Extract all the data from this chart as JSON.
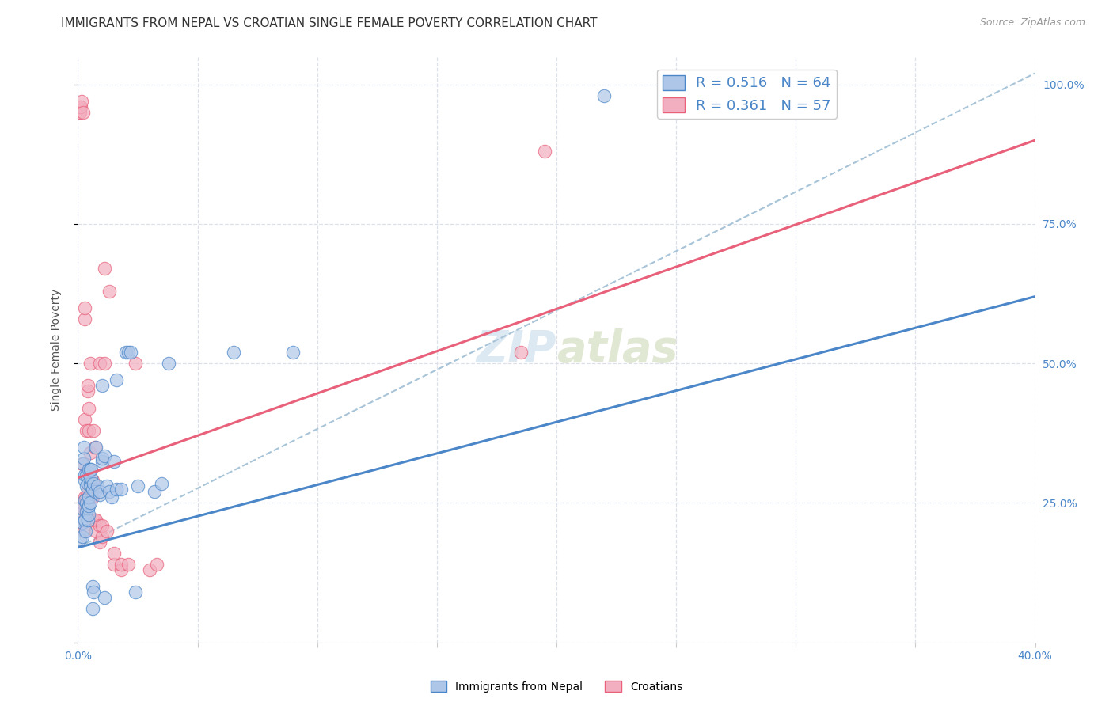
{
  "title": "IMMIGRANTS FROM NEPAL VS CROATIAN SINGLE FEMALE POVERTY CORRELATION CHART",
  "source": "Source: ZipAtlas.com",
  "ylabel": "Single Female Poverty",
  "blue_color": "#aec6e8",
  "pink_color": "#f2afc0",
  "blue_line_color": "#4a86c8",
  "pink_line_color": "#e8607a",
  "dashed_line_color": "#a8c4d8",
  "watermark_zip": "ZIP",
  "watermark_atlas": "atlas",
  "blue_scatter": [
    [
      0.0008,
      0.185
    ],
    [
      0.0015,
      0.22
    ],
    [
      0.0018,
      0.24
    ],
    [
      0.002,
      0.19
    ],
    [
      0.002,
      0.215
    ],
    [
      0.0022,
      0.32
    ],
    [
      0.0025,
      0.33
    ],
    [
      0.0025,
      0.35
    ],
    [
      0.003,
      0.22
    ],
    [
      0.003,
      0.255
    ],
    [
      0.003,
      0.29
    ],
    [
      0.003,
      0.3
    ],
    [
      0.0032,
      0.2
    ],
    [
      0.0035,
      0.235
    ],
    [
      0.0035,
      0.25
    ],
    [
      0.0035,
      0.28
    ],
    [
      0.0035,
      0.3
    ],
    [
      0.004,
      0.22
    ],
    [
      0.004,
      0.24
    ],
    [
      0.004,
      0.285
    ],
    [
      0.004,
      0.305
    ],
    [
      0.0045,
      0.23
    ],
    [
      0.0045,
      0.245
    ],
    [
      0.0045,
      0.26
    ],
    [
      0.0045,
      0.31
    ],
    [
      0.005,
      0.25
    ],
    [
      0.005,
      0.285
    ],
    [
      0.005,
      0.31
    ],
    [
      0.0055,
      0.28
    ],
    [
      0.0055,
      0.295
    ],
    [
      0.0055,
      0.31
    ],
    [
      0.006,
      0.06
    ],
    [
      0.006,
      0.1
    ],
    [
      0.006,
      0.275
    ],
    [
      0.0065,
      0.09
    ],
    [
      0.0065,
      0.285
    ],
    [
      0.007,
      0.27
    ],
    [
      0.0075,
      0.35
    ],
    [
      0.008,
      0.28
    ],
    [
      0.009,
      0.265
    ],
    [
      0.009,
      0.27
    ],
    [
      0.01,
      0.325
    ],
    [
      0.01,
      0.33
    ],
    [
      0.01,
      0.46
    ],
    [
      0.011,
      0.335
    ],
    [
      0.011,
      0.08
    ],
    [
      0.012,
      0.28
    ],
    [
      0.013,
      0.27
    ],
    [
      0.014,
      0.26
    ],
    [
      0.015,
      0.325
    ],
    [
      0.016,
      0.47
    ],
    [
      0.016,
      0.275
    ],
    [
      0.018,
      0.275
    ],
    [
      0.02,
      0.52
    ],
    [
      0.021,
      0.52
    ],
    [
      0.022,
      0.52
    ],
    [
      0.024,
      0.09
    ],
    [
      0.025,
      0.28
    ],
    [
      0.032,
      0.27
    ],
    [
      0.035,
      0.285
    ],
    [
      0.038,
      0.5
    ],
    [
      0.065,
      0.52
    ],
    [
      0.09,
      0.52
    ],
    [
      0.22,
      0.98
    ]
  ],
  "pink_scatter": [
    [
      0.0005,
      0.95
    ],
    [
      0.0007,
      0.96
    ],
    [
      0.001,
      0.95
    ],
    [
      0.0012,
      0.96
    ],
    [
      0.0014,
      0.97
    ],
    [
      0.0016,
      0.24
    ],
    [
      0.0018,
      0.32
    ],
    [
      0.002,
      0.24
    ],
    [
      0.002,
      0.25
    ],
    [
      0.0022,
      0.95
    ],
    [
      0.0025,
      0.2
    ],
    [
      0.0025,
      0.22
    ],
    [
      0.003,
      0.26
    ],
    [
      0.003,
      0.4
    ],
    [
      0.003,
      0.58
    ],
    [
      0.003,
      0.6
    ],
    [
      0.0035,
      0.26
    ],
    [
      0.0035,
      0.38
    ],
    [
      0.004,
      0.45
    ],
    [
      0.004,
      0.46
    ],
    [
      0.0042,
      0.26
    ],
    [
      0.0042,
      0.27
    ],
    [
      0.0045,
      0.38
    ],
    [
      0.0045,
      0.42
    ],
    [
      0.005,
      0.28
    ],
    [
      0.005,
      0.34
    ],
    [
      0.005,
      0.5
    ],
    [
      0.0055,
      0.26
    ],
    [
      0.0055,
      0.27
    ],
    [
      0.006,
      0.26
    ],
    [
      0.006,
      0.27
    ],
    [
      0.006,
      0.29
    ],
    [
      0.0065,
      0.22
    ],
    [
      0.0065,
      0.38
    ],
    [
      0.007,
      0.22
    ],
    [
      0.007,
      0.35
    ],
    [
      0.0075,
      0.2
    ],
    [
      0.0075,
      0.22
    ],
    [
      0.009,
      0.18
    ],
    [
      0.009,
      0.21
    ],
    [
      0.009,
      0.5
    ],
    [
      0.01,
      0.19
    ],
    [
      0.01,
      0.21
    ],
    [
      0.011,
      0.5
    ],
    [
      0.011,
      0.67
    ],
    [
      0.012,
      0.2
    ],
    [
      0.013,
      0.63
    ],
    [
      0.015,
      0.14
    ],
    [
      0.015,
      0.16
    ],
    [
      0.018,
      0.13
    ],
    [
      0.018,
      0.14
    ],
    [
      0.021,
      0.14
    ],
    [
      0.024,
      0.5
    ],
    [
      0.03,
      0.13
    ],
    [
      0.033,
      0.14
    ],
    [
      0.185,
      0.52
    ],
    [
      0.195,
      0.88
    ]
  ],
  "x_min": 0.0,
  "x_max": 0.4,
  "y_min": 0.0,
  "y_max": 1.05,
  "blue_reg": [
    0.0,
    0.17,
    0.4,
    0.62
  ],
  "pink_reg": [
    0.0,
    0.295,
    0.4,
    0.9
  ],
  "dash_reg": [
    0.0,
    0.17,
    0.4,
    1.02
  ],
  "title_fontsize": 11,
  "source_fontsize": 9,
  "axis_label_fontsize": 10,
  "tick_fontsize": 10,
  "legend_fontsize": 13,
  "watermark_fontsize": 40,
  "right_tick_color": "#4a86c8",
  "title_color": "#333333",
  "source_color": "#999999",
  "grid_color": "#dde0e8",
  "legend_text_color": "#4a86c8"
}
